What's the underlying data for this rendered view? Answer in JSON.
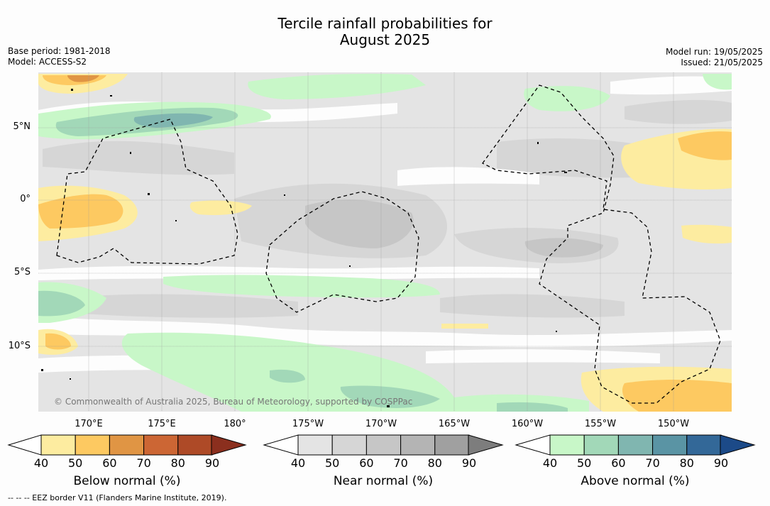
{
  "title_line1": "Tercile rainfall probabilities for",
  "title_line2": "August 2025",
  "left_info": {
    "base_period": "Base period: 1981-2018",
    "model": "Model: ACCESS-S2"
  },
  "right_info": {
    "model_run": "Model run: 19/05/2025",
    "issued": "Issued: 21/05/2025"
  },
  "lat_labels": [
    "5°N",
    "0°",
    "5°S",
    "10°S"
  ],
  "lon_labels": [
    "170°E",
    "175°E",
    "180°",
    "175°W",
    "170°W",
    "165°W",
    "160°W",
    "155°W",
    "150°W"
  ],
  "copyright": "© Commonwealth of Australia 2025, Bureau of Meteorology, supported by COSPPac",
  "colorbars": [
    {
      "label": "Below normal (%)",
      "ticks": [
        "40",
        "50",
        "60",
        "70",
        "80",
        "90"
      ],
      "colors": [
        "#fdeca0",
        "#fdc961",
        "#e09544",
        "#cc6634",
        "#ae4a27",
        "#8b2f1e"
      ]
    },
    {
      "label": "Near normal (%)",
      "ticks": [
        "40",
        "50",
        "60",
        "70",
        "80",
        "90"
      ],
      "colors": [
        "#e4e4e4",
        "#d6d6d6",
        "#c6c6c6",
        "#b4b4b4",
        "#a0a0a0",
        "#7d7d7d"
      ]
    },
    {
      "label": "Above normal (%)",
      "ticks": [
        "40",
        "50",
        "60",
        "70",
        "80",
        "90"
      ],
      "colors": [
        "#c8f7c8",
        "#a2d8b8",
        "#80b6b0",
        "#5a94a4",
        "#336898",
        "#1c4a88"
      ]
    }
  ],
  "footer": "--  --  -- EEZ border V11 (Flanders Marine Institute, 2019)."
}
